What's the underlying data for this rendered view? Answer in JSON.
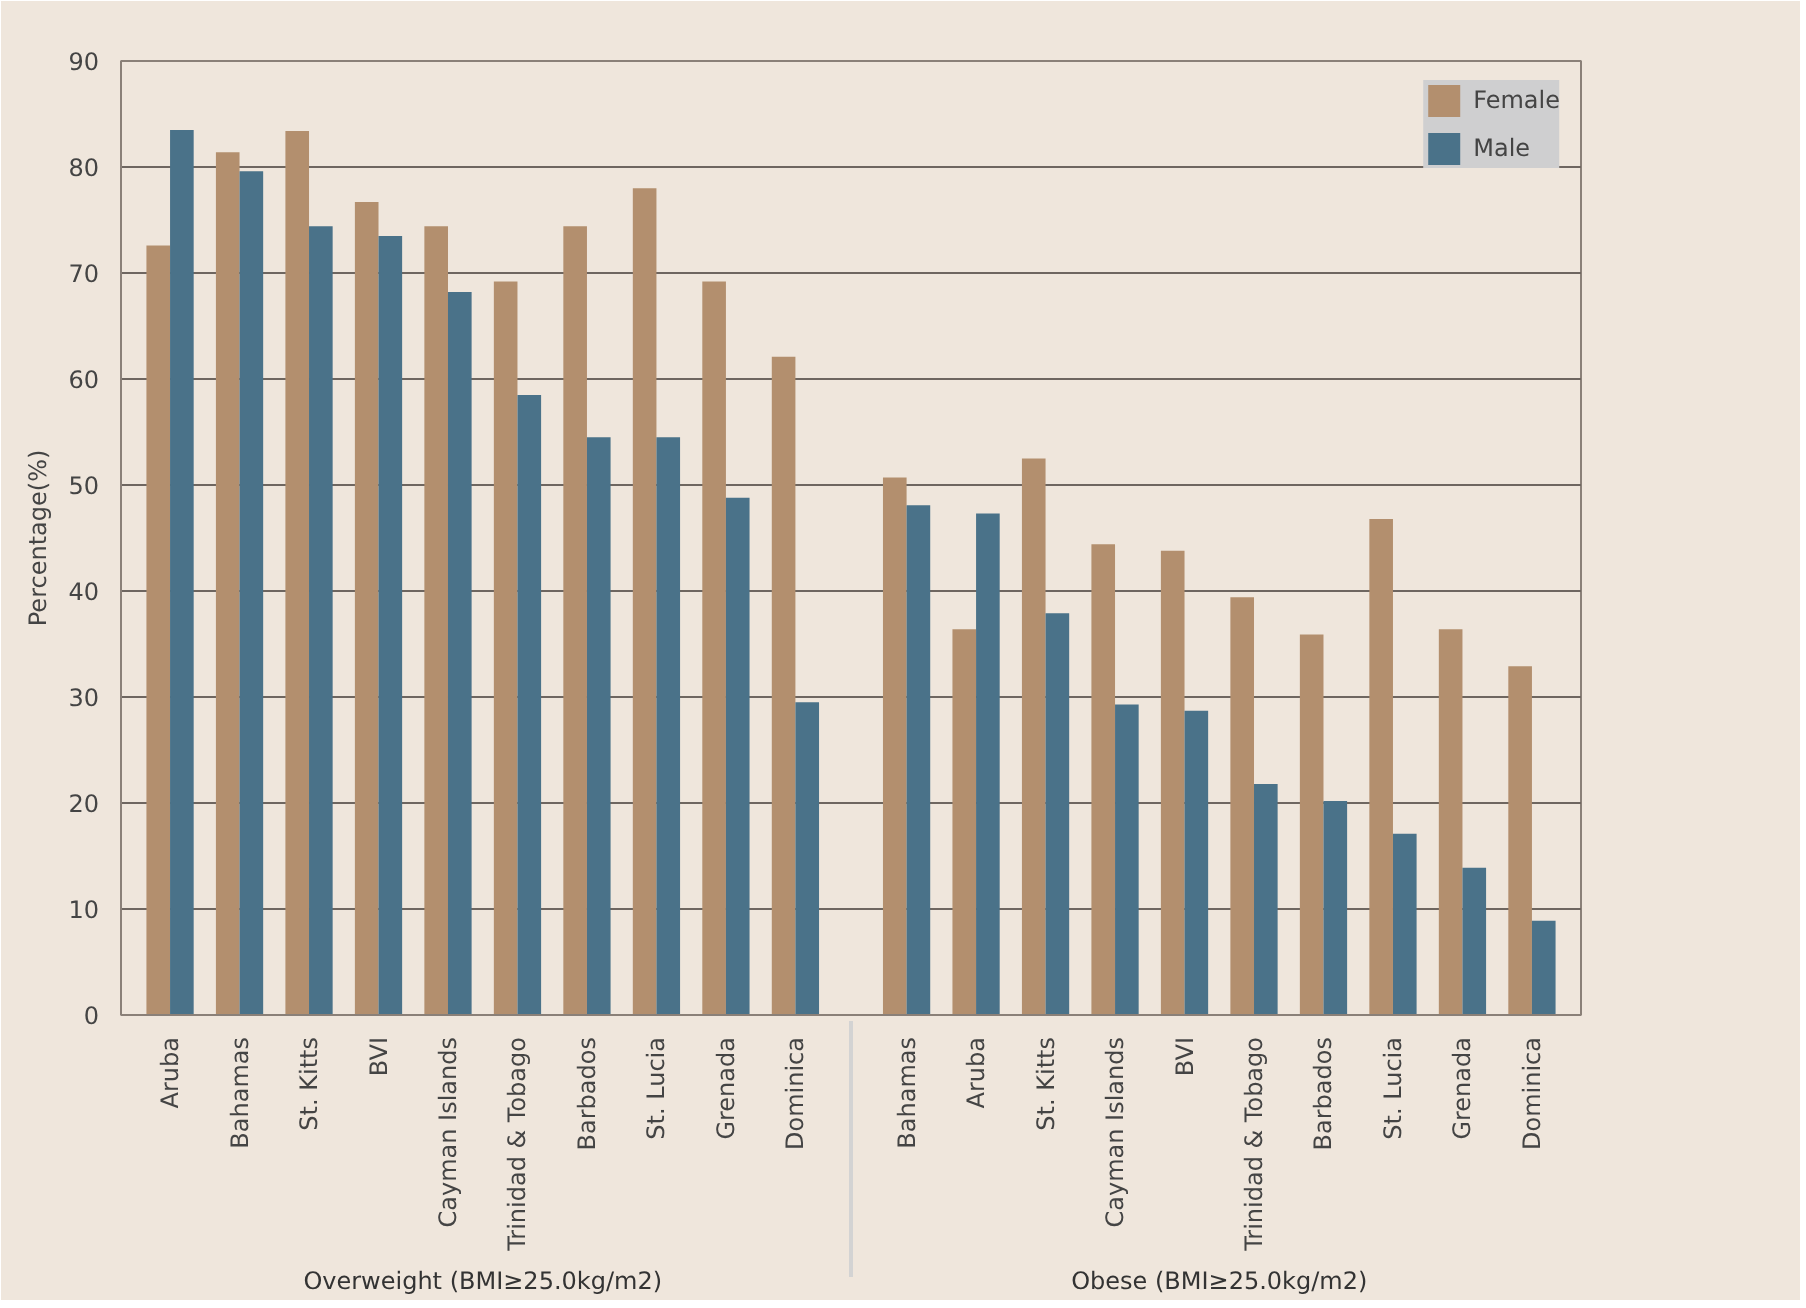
{
  "chart_data": {
    "type": "bar",
    "ylabel": "Percentage(%)",
    "categories": [
      "Aruba",
      "Bahamas",
      "St. Kitts",
      "BVI",
      "Cayman Islands",
      "Trinidad & Tobago",
      "Barbados",
      "St. Lucia",
      "Grenada",
      "Dominica",
      "Bahamas",
      "Aruba",
      "St. Kitts",
      "Cayman Islands",
      "BVI",
      "Trinidad & Tobago",
      "Barbados",
      "St. Lucia",
      "Grenada",
      "Dominica"
    ],
    "series": [
      {
        "name": "Female",
        "color": "#b38f6e",
        "values": [
          72.6,
          81.4,
          83.4,
          76.7,
          74.4,
          69.2,
          74.4,
          78.0,
          69.2,
          62.1,
          50.7,
          36.4,
          52.5,
          44.4,
          43.8,
          39.4,
          35.9,
          46.8,
          36.4,
          32.9
        ]
      },
      {
        "name": "Male",
        "color": "#4a7289",
        "values": [
          83.5,
          79.6,
          74.4,
          73.5,
          68.2,
          58.5,
          54.5,
          54.5,
          48.8,
          29.5,
          48.1,
          47.3,
          37.9,
          29.3,
          28.7,
          21.8,
          20.2,
          17.1,
          13.9,
          8.9
        ]
      }
    ],
    "annotations": [
      "Overweight (BMI≥25.0kg/m2)",
      "Obese (BMI≥25.0kg/m2)"
    ],
    "ylim": [
      0,
      90
    ],
    "yticks": [
      0,
      10,
      20,
      30,
      40,
      50,
      60,
      70,
      80,
      90
    ],
    "grid": "y",
    "legend": "top right"
  }
}
